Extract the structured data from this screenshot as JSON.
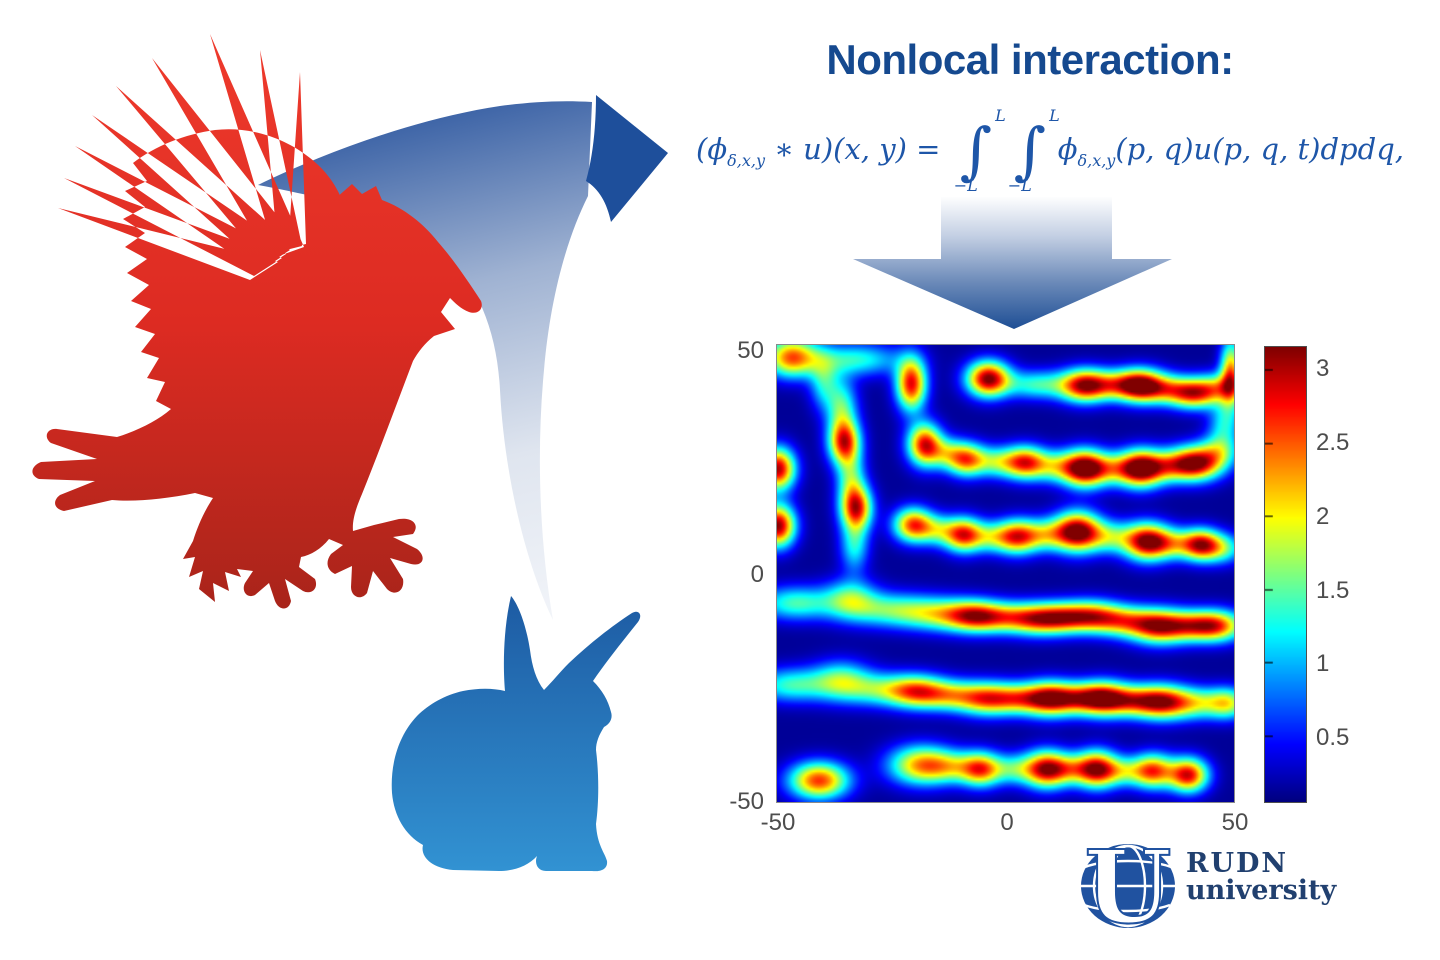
{
  "title": {
    "text": "Nonlocal interaction:"
  },
  "colors": {
    "title": "#15498f",
    "formula": "#1e56a8",
    "eagle_top": "#ee3a2c",
    "eagle_mid": "#dd2b22",
    "eagle_bottom": "#a8241a",
    "rabbit_top": "#1d5aa2",
    "rabbit_bottom": "#3293d3",
    "swoosh_light": "#f4f6fa",
    "swoosh_mid": "#9fb2d2",
    "swoosh_dark": "#3c63a6",
    "arrow_dark": "#1e4f9b",
    "down_arrow_dark": "#1c4d94",
    "axis_label": "#4d4d4d",
    "logo_blue": "#2052a0",
    "logo_text": "#21406f"
  },
  "formula": {
    "lhs_open": "(",
    "phi": "ϕ",
    "phi_sub": "δ,x,y",
    "conv_mid": " ∗ u)(x, y) = ",
    "integral_sign": "∫",
    "int_upper": "L",
    "int_lower": "−L",
    "rhs_tail": "(p, q)u(p, q, t)dpdq,"
  },
  "illustration": {
    "predator": "eagle silhouette",
    "prey": "rabbit silhouette",
    "flow_arrow": "curved arrow from predator-prey pair to nonlocal interaction formula",
    "derive_arrow": "downward arrow from formula to simulation heatmap"
  },
  "logo": {
    "line1": "RUDN",
    "line2": "university"
  },
  "chart_data": {
    "type": "heatmap",
    "title": "",
    "xlabel": "",
    "ylabel": "",
    "colormap": "jet",
    "x_range": [
      -50,
      50
    ],
    "y_range": [
      -50,
      50
    ],
    "x_tick_labels": [
      "-50",
      "0",
      "50"
    ],
    "y_tick_labels": [
      "50",
      "0",
      "-50"
    ],
    "grid": false,
    "colorbar": {
      "position": "right",
      "min": 0.05,
      "max": 3.15,
      "tick_values": [
        3,
        2.5,
        2,
        1.5,
        1,
        0.5
      ],
      "tick_labels": [
        "3",
        "2.5",
        "2",
        "1.5",
        "1",
        "0.5"
      ]
    },
    "background_value": 0.12,
    "blob_format": "x, y, sigma_x, sigma_y, peak_value",
    "blobs": [
      [
        -47,
        47.5,
        4,
        3,
        2.3
      ],
      [
        -40,
        42,
        2.2,
        4,
        1.0
      ],
      [
        -33,
        47,
        7,
        2.5,
        1.2
      ],
      [
        49.5,
        44,
        1.6,
        5,
        2.2
      ],
      [
        -50,
        23,
        2.6,
        3.2,
        2.9
      ],
      [
        -50,
        10.5,
        2.6,
        3.2,
        3.0
      ],
      [
        -41,
        -45.5,
        4.5,
        2.8,
        2.5
      ],
      [
        -20.7,
        41.7,
        2.3,
        4,
        2.7
      ],
      [
        -3.8,
        42.8,
        3.3,
        2.7,
        3.0
      ],
      [
        7,
        41.5,
        5,
        2.2,
        1.25
      ],
      [
        17.4,
        41.3,
        3.8,
        2.5,
        2.75
      ],
      [
        24,
        41.5,
        4,
        2.2,
        1.2
      ],
      [
        29.7,
        41.3,
        3.8,
        2.5,
        2.95
      ],
      [
        36,
        40.5,
        4,
        2.2,
        1.25
      ],
      [
        41.5,
        39.5,
        3.8,
        2.3,
        2.2
      ],
      [
        47,
        41,
        3.5,
        2.2,
        1.3
      ],
      [
        -36,
        36.5,
        2.4,
        4.5,
        1.3
      ],
      [
        -35.4,
        28.8,
        2.4,
        3.4,
        2.5
      ],
      [
        -34,
        21,
        2.2,
        4,
        1.2
      ],
      [
        -32.8,
        14.4,
        2.4,
        3.4,
        2.6
      ],
      [
        -33.2,
        6,
        2.2,
        4,
        1.1
      ],
      [
        -17.8,
        28.4,
        2.6,
        3.2,
        2.6
      ],
      [
        -13,
        26.5,
        3,
        2.4,
        1.1
      ],
      [
        -8.4,
        25,
        3,
        2.5,
        2.2
      ],
      [
        -2,
        24.5,
        3,
        2.3,
        1.15
      ],
      [
        4.2,
        24.4,
        3.3,
        2.5,
        2.5
      ],
      [
        11,
        23.5,
        3.5,
        2.4,
        1.25
      ],
      [
        17.4,
        23.1,
        3.4,
        2.8,
        3.15
      ],
      [
        23.5,
        23,
        3.5,
        2.4,
        1.2
      ],
      [
        29.7,
        23.1,
        3.4,
        2.8,
        3.15
      ],
      [
        35.5,
        23.5,
        3.5,
        2.4,
        1.2
      ],
      [
        41.7,
        24.2,
        4,
        2.6,
        3.0
      ],
      [
        47,
        27,
        3,
        2.6,
        1.1
      ],
      [
        48,
        33,
        2.4,
        3.5,
        1.0
      ],
      [
        -20.3,
        10.7,
        3,
        2.6,
        2.4
      ],
      [
        -15,
        9.5,
        3,
        2.3,
        1.1
      ],
      [
        -9.2,
        8.5,
        3,
        2.6,
        2.5
      ],
      [
        -3,
        8,
        3.2,
        2.3,
        1.1
      ],
      [
        2.7,
        8.1,
        3.3,
        2.6,
        2.4
      ],
      [
        9,
        8.5,
        3.4,
        2.4,
        1.25
      ],
      [
        15.8,
        9.2,
        3.6,
        3,
        3.15
      ],
      [
        23,
        8,
        3.6,
        2.4,
        1.2
      ],
      [
        31.1,
        7,
        3.6,
        2.8,
        3.0
      ],
      [
        37,
        6.5,
        3.4,
        2.3,
        1.2
      ],
      [
        43,
        6.3,
        3,
        2.4,
        2.6
      ],
      [
        48,
        5.5,
        3,
        2.3,
        1.15
      ],
      [
        -46,
        -6.5,
        6,
        2.6,
        1.3
      ],
      [
        -34,
        -5.5,
        4,
        3,
        1.25
      ],
      [
        -25,
        -8,
        7,
        2.6,
        1.3
      ],
      [
        -14,
        -9,
        6,
        2.5,
        1.35
      ],
      [
        -6.6,
        -9.4,
        4.5,
        2.4,
        2.0
      ],
      [
        0.5,
        -9.7,
        5,
        2.3,
        1.4
      ],
      [
        7.5,
        -10,
        4.5,
        2.4,
        2.0
      ],
      [
        13,
        -9.7,
        4,
        2.3,
        1.4
      ],
      [
        19.2,
        -9.4,
        4.5,
        2.4,
        2.1
      ],
      [
        26,
        -10.5,
        4.5,
        2.3,
        1.5
      ],
      [
        33.7,
        -11.6,
        4.5,
        2.6,
        2.65
      ],
      [
        41,
        -11.5,
        4,
        2.3,
        1.5
      ],
      [
        46.7,
        -11.5,
        4,
        2.4,
        2.2
      ],
      [
        -47,
        -24.5,
        6,
        2.6,
        1.25
      ],
      [
        -36,
        -23.5,
        4.5,
        3,
        1.3
      ],
      [
        -27,
        -25.5,
        6,
        2.5,
        1.25
      ],
      [
        -19.2,
        -26,
        4.5,
        2.5,
        1.9
      ],
      [
        -12,
        -26.8,
        4.5,
        2.3,
        1.35
      ],
      [
        -4,
        -27.5,
        4.5,
        2.5,
        2.2
      ],
      [
        3,
        -27.5,
        4,
        2.3,
        1.4
      ],
      [
        9.7,
        -27.5,
        4,
        2.6,
        2.7
      ],
      [
        16,
        -27.5,
        4,
        2.3,
        1.4
      ],
      [
        21.6,
        -27.5,
        4,
        2.6,
        2.7
      ],
      [
        28,
        -28,
        4,
        2.3,
        1.4
      ],
      [
        34.1,
        -28.2,
        4.2,
        2.6,
        2.4
      ],
      [
        42,
        -28.5,
        5,
        2.4,
        1.5
      ],
      [
        49,
        -28.5,
        3,
        2.4,
        1.4
      ],
      [
        -18.5,
        -42.1,
        5,
        3,
        2.1
      ],
      [
        -12,
        -42.5,
        4,
        2.4,
        1.0
      ],
      [
        -5.4,
        -43,
        3.2,
        2.6,
        2.3
      ],
      [
        2,
        -43,
        3.4,
        2.3,
        1.1
      ],
      [
        9,
        -43,
        3.4,
        2.8,
        2.8
      ],
      [
        14.5,
        -43,
        3.2,
        2.3,
        1.15
      ],
      [
        20.1,
        -43,
        3.2,
        2.8,
        2.8
      ],
      [
        26,
        -43.5,
        3.2,
        2.2,
        1.1
      ],
      [
        32.4,
        -43.4,
        3.2,
        2.6,
        2.4
      ],
      [
        40.2,
        -44.3,
        3,
        2.6,
        2.7
      ]
    ]
  }
}
